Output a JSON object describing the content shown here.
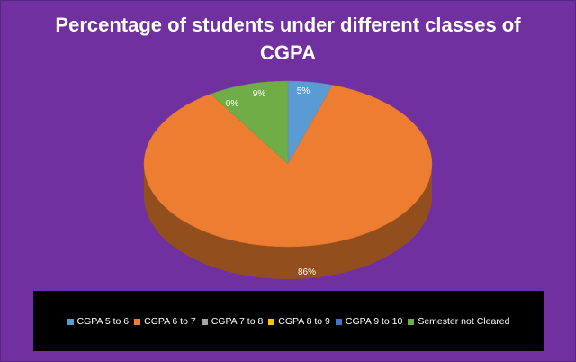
{
  "chart_data": {
    "type": "pie",
    "title": "Percentage of students under different classes of CGPA",
    "title_lines": [
      "Percentage of students under different classes of",
      "CGPA"
    ],
    "categories": [
      "CGPA 5 to 6",
      "CGPA 6 to 7",
      "CGPA 7 to 8",
      "CGPA 8 to 9",
      "CGPA 9 to 10",
      "Semester not Cleared"
    ],
    "values": [
      5,
      86,
      0,
      0,
      0,
      9
    ],
    "data_labels": [
      "5%",
      "86%",
      "0%",
      "",
      "",
      "9%"
    ],
    "colors": [
      "#5b9bd5",
      "#ed7d31",
      "#a5a5a5",
      "#ffc000",
      "#4472c4",
      "#70ad47"
    ],
    "legend_position": "bottom",
    "style": "3d"
  },
  "page": {
    "background": "#7030a0",
    "legend_background": "#000000"
  }
}
